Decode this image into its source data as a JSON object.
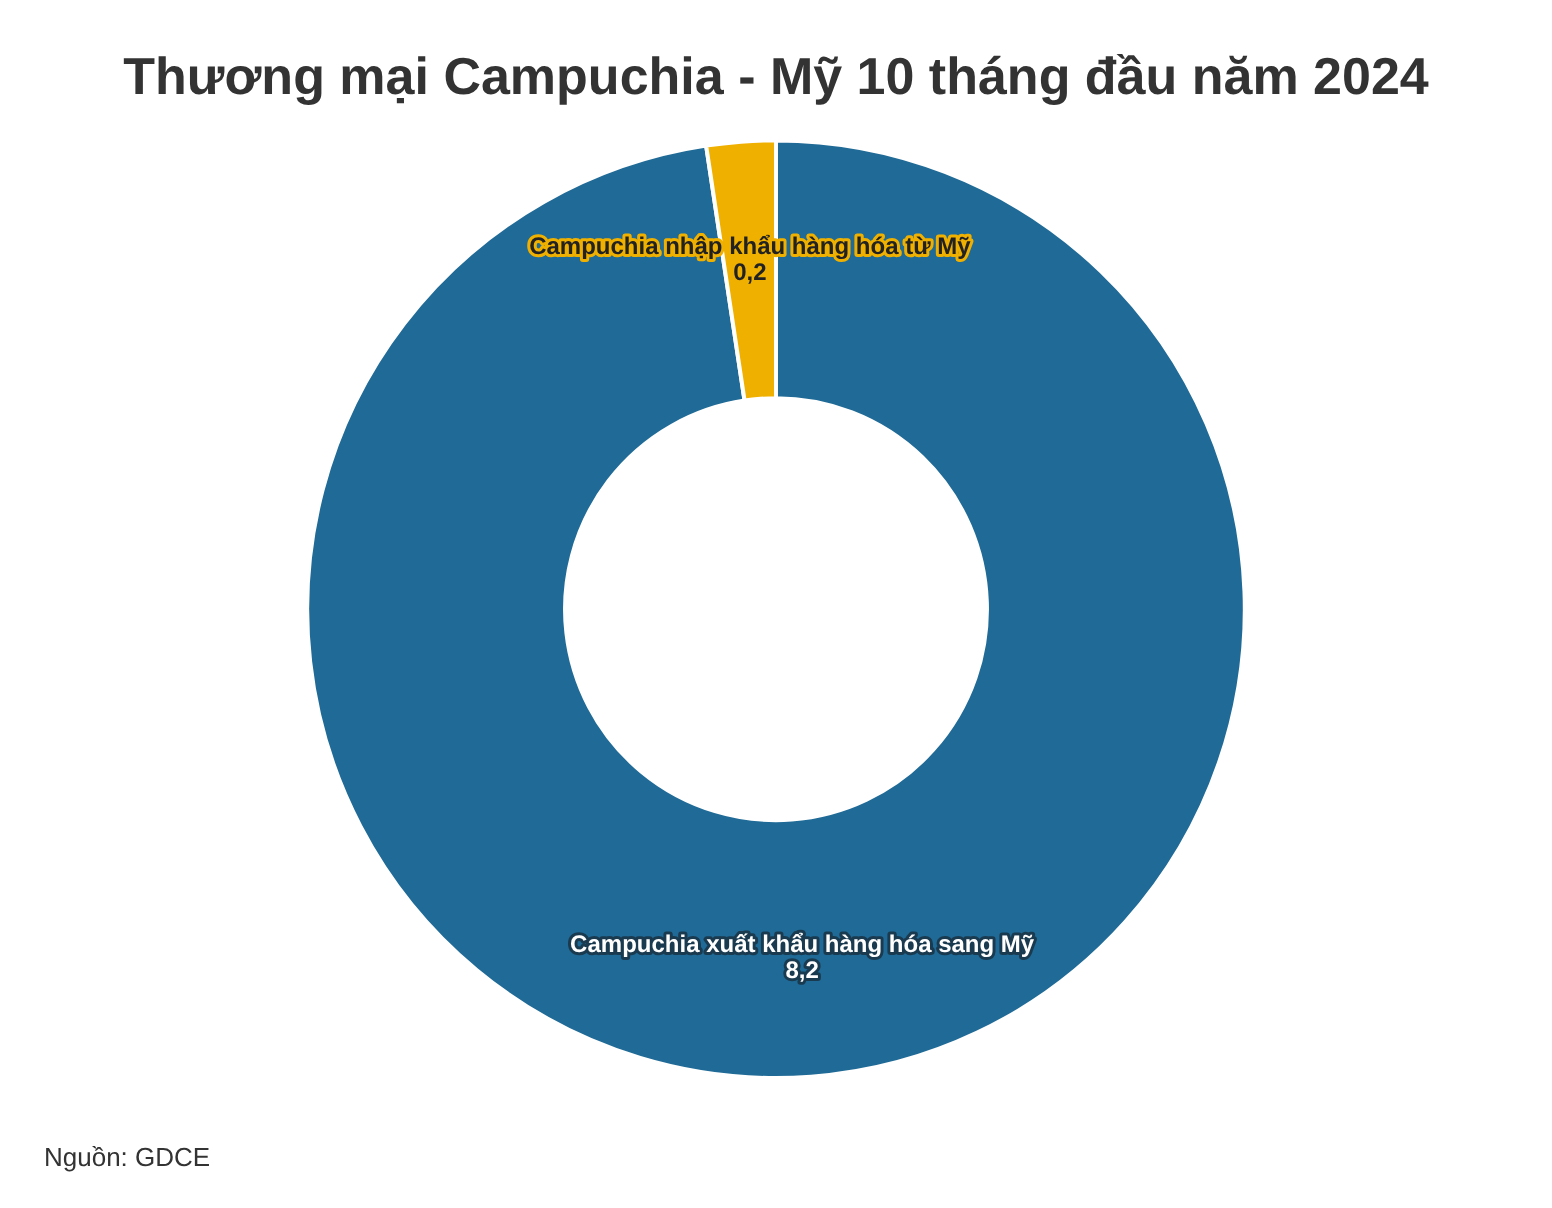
{
  "chart_data": {
    "type": "donut",
    "title": "Thương mại Campuchia - Mỹ 10 tháng đầu năm 2024",
    "categories": [
      "Campuchia xuất khẩu hàng hóa sang Mỹ",
      "Campuchia nhập khẩu hàng hóa từ Mỹ"
    ],
    "values": [
      8.2,
      0.2
    ],
    "colors": [
      "#1f6a96",
      "#f0b000"
    ],
    "value_labels": [
      "8,2",
      "0,2"
    ],
    "legend": false,
    "annotations": [
      "Nguồn: GDCE"
    ]
  }
}
